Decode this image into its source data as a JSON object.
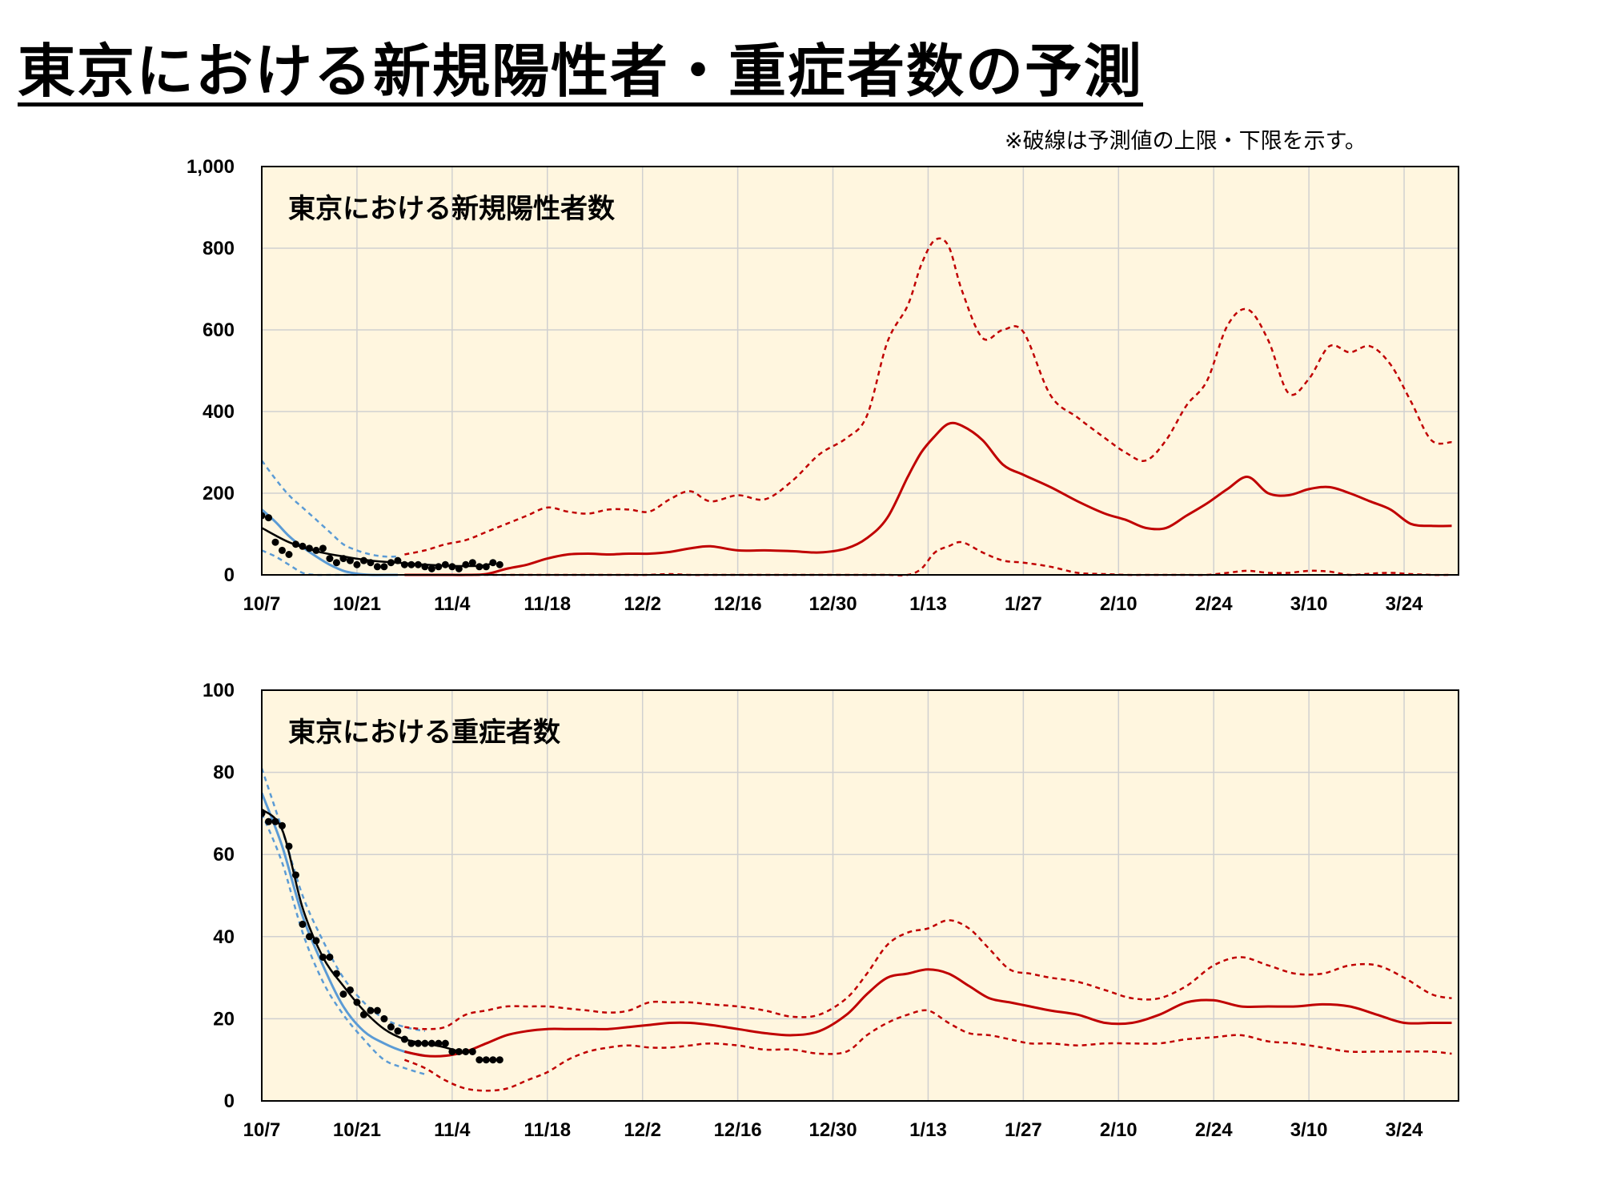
{
  "page": {
    "title": "東京における新規陽性者・重症者数の予測",
    "note": "※破線は予測値の上限・下限を示す。"
  },
  "colors": {
    "plot_bg": "#fff6df",
    "grid": "#d0d0d0",
    "observed": "#000000",
    "fit": "#5b9bd5",
    "forecast": "#c00000"
  },
  "chart_data": [
    {
      "type": "line",
      "title": "東京における新規陽性者数",
      "x_start": "10/7",
      "x_tick_labels": [
        "10/7",
        "10/21",
        "11/4",
        "11/18",
        "12/2",
        "12/16",
        "12/30",
        "1/13",
        "1/27",
        "2/10",
        "2/24",
        "3/10",
        "3/24"
      ],
      "x_tick_days": [
        0,
        14,
        28,
        42,
        56,
        70,
        84,
        98,
        112,
        126,
        140,
        154,
        168
      ],
      "xlim_days": [
        0,
        176
      ],
      "ylim": [
        0,
        1000
      ],
      "y_ticks": [
        0,
        200,
        400,
        600,
        800,
        1000
      ],
      "y_tick_labels": [
        "0",
        "200",
        "400",
        "600",
        "800",
        "1,000"
      ],
      "grid": true,
      "series": [
        {
          "role": "observed_points",
          "x": [
            0,
            1,
            2,
            3,
            4,
            5,
            6,
            7,
            8,
            9,
            10,
            11,
            12,
            13,
            14,
            15,
            16,
            17,
            18,
            19,
            20,
            21,
            22,
            23,
            24,
            25,
            26,
            27,
            28,
            29,
            30,
            31,
            32,
            33,
            34,
            35
          ],
          "values": [
            145,
            140,
            80,
            60,
            50,
            75,
            70,
            65,
            60,
            65,
            40,
            30,
            40,
            35,
            25,
            35,
            30,
            20,
            20,
            30,
            35,
            25,
            25,
            25,
            20,
            15,
            20,
            25,
            20,
            15,
            25,
            30,
            20,
            20,
            30,
            25
          ]
        },
        {
          "role": "observed_smooth",
          "x": [
            0,
            4,
            8,
            12,
            16,
            20,
            24,
            28,
            32,
            34
          ],
          "values": [
            115,
            80,
            58,
            45,
            35,
            30,
            25,
            22,
            22,
            28
          ]
        },
        {
          "role": "fit",
          "x": [
            0,
            2,
            4,
            6,
            8,
            10,
            12,
            14,
            16,
            18,
            20
          ],
          "values": [
            160,
            130,
            95,
            68,
            45,
            25,
            10,
            3,
            0,
            0,
            0
          ]
        },
        {
          "role": "fit_upper",
          "x": [
            0,
            2,
            4,
            6,
            8,
            10,
            12,
            14,
            16,
            18,
            20
          ],
          "values": [
            280,
            235,
            195,
            165,
            135,
            105,
            75,
            60,
            50,
            45,
            45
          ]
        },
        {
          "role": "fit_lower",
          "x": [
            0,
            2,
            4,
            6,
            8,
            10,
            12,
            14,
            16,
            18,
            20
          ],
          "values": [
            60,
            45,
            25,
            5,
            0,
            0,
            0,
            0,
            0,
            0,
            0
          ]
        },
        {
          "role": "forecast",
          "x": [
            21,
            24,
            27,
            30,
            33,
            36,
            39,
            42,
            45,
            48,
            51,
            54,
            57,
            60,
            63,
            66,
            70,
            74,
            78,
            82,
            86,
            89,
            92,
            95,
            97,
            99,
            101,
            103,
            106,
            109,
            112,
            116,
            120,
            124,
            127,
            130,
            133,
            136,
            139,
            142,
            145,
            148,
            151,
            154,
            157,
            160,
            163,
            166,
            169,
            172,
            175
          ],
          "values": [
            0,
            0,
            0,
            0,
            2,
            15,
            25,
            40,
            50,
            52,
            50,
            52,
            52,
            56,
            65,
            70,
            60,
            60,
            58,
            55,
            65,
            90,
            140,
            240,
            300,
            340,
            370,
            365,
            330,
            270,
            245,
            215,
            180,
            150,
            135,
            115,
            115,
            145,
            175,
            210,
            240,
            200,
            195,
            210,
            215,
            200,
            180,
            160,
            125,
            120,
            120
          ]
        },
        {
          "role": "forecast_upper",
          "x": [
            21,
            24,
            27,
            30,
            33,
            36,
            39,
            42,
            45,
            48,
            51,
            54,
            57,
            60,
            63,
            66,
            70,
            74,
            78,
            82,
            86,
            89,
            92,
            95,
            97,
            99,
            101,
            103,
            106,
            109,
            112,
            116,
            120,
            124,
            127,
            130,
            133,
            136,
            139,
            142,
            145,
            148,
            151,
            154,
            157,
            160,
            163,
            166,
            169,
            172,
            175
          ],
          "values": [
            50,
            60,
            75,
            85,
            105,
            125,
            145,
            165,
            155,
            150,
            160,
            160,
            155,
            185,
            205,
            180,
            195,
            185,
            230,
            295,
            335,
            390,
            570,
            660,
            760,
            820,
            805,
            695,
            580,
            600,
            595,
            440,
            385,
            335,
            300,
            280,
            330,
            415,
            475,
            610,
            650,
            575,
            445,
            480,
            560,
            545,
            560,
            515,
            425,
            330,
            325
          ]
        },
        {
          "role": "forecast_lower",
          "x": [
            21,
            24,
            27,
            30,
            33,
            36,
            39,
            42,
            45,
            48,
            51,
            54,
            57,
            60,
            63,
            66,
            70,
            74,
            78,
            82,
            86,
            89,
            92,
            95,
            97,
            99,
            101,
            103,
            106,
            109,
            112,
            116,
            120,
            124,
            127,
            130,
            133,
            136,
            139,
            142,
            145,
            148,
            151,
            154,
            157,
            160,
            163,
            166,
            169,
            172,
            175
          ],
          "values": [
            0,
            0,
            0,
            0,
            0,
            0,
            0,
            0,
            0,
            0,
            0,
            0,
            0,
            2,
            0,
            0,
            0,
            0,
            0,
            0,
            0,
            0,
            0,
            0,
            15,
            55,
            70,
            80,
            55,
            35,
            30,
            20,
            5,
            2,
            0,
            0,
            0,
            0,
            0,
            5,
            10,
            5,
            5,
            10,
            8,
            0,
            3,
            5,
            2,
            0,
            0
          ]
        }
      ]
    },
    {
      "type": "line",
      "title": "東京における重症者数",
      "x_start": "10/7",
      "x_tick_labels": [
        "10/7",
        "10/21",
        "11/4",
        "11/18",
        "12/2",
        "12/16",
        "12/30",
        "1/13",
        "1/27",
        "2/10",
        "2/24",
        "3/10",
        "3/24"
      ],
      "x_tick_days": [
        0,
        14,
        28,
        42,
        56,
        70,
        84,
        98,
        112,
        126,
        140,
        154,
        168
      ],
      "xlim_days": [
        0,
        176
      ],
      "ylim": [
        0,
        100
      ],
      "y_ticks": [
        0,
        20,
        40,
        60,
        80,
        100
      ],
      "y_tick_labels": [
        "0",
        "20",
        "40",
        "60",
        "80",
        "100"
      ],
      "grid": true,
      "series": [
        {
          "role": "observed_points",
          "x": [
            0,
            1,
            2,
            3,
            4,
            5,
            6,
            7,
            8,
            9,
            10,
            11,
            12,
            13,
            14,
            15,
            16,
            17,
            18,
            19,
            20,
            21,
            22,
            23,
            24,
            25,
            26,
            27,
            28,
            29,
            30,
            31,
            32,
            33,
            34,
            35
          ],
          "values": [
            70,
            68,
            68,
            67,
            62,
            55,
            43,
            40,
            39,
            35,
            35,
            31,
            26,
            27,
            24,
            21,
            22,
            22,
            20,
            18,
            17,
            15,
            14,
            14,
            14,
            14,
            14,
            14,
            12,
            12,
            12,
            12,
            10,
            10,
            10,
            10
          ]
        },
        {
          "role": "observed_smooth",
          "x": [
            0,
            3,
            6,
            9,
            12,
            15,
            18,
            21,
            24,
            27,
            30
          ],
          "values": [
            71,
            66,
            47,
            35,
            28,
            22,
            17.5,
            15,
            14,
            13,
            11.5
          ]
        },
        {
          "role": "fit",
          "x": [
            0,
            3,
            6,
            9,
            12,
            15,
            18,
            21,
            24
          ],
          "values": [
            75,
            62,
            45,
            33,
            23,
            17,
            14,
            12,
            11
          ]
        },
        {
          "role": "fit_upper",
          "x": [
            0,
            3,
            6,
            9,
            12,
            15,
            18,
            21,
            24
          ],
          "values": [
            81,
            66,
            50,
            39,
            30,
            24,
            20,
            18,
            17
          ]
        },
        {
          "role": "fit_lower",
          "x": [
            0,
            3,
            6,
            9,
            12,
            15,
            18,
            21,
            24
          ],
          "values": [
            70,
            58,
            41,
            29,
            21,
            15,
            10,
            8,
            6.5
          ]
        },
        {
          "role": "forecast",
          "x": [
            21,
            24,
            27,
            30,
            33,
            36,
            39,
            42,
            45,
            48,
            51,
            54,
            57,
            60,
            63,
            66,
            70,
            74,
            78,
            82,
            86,
            89,
            92,
            95,
            98,
            101,
            104,
            107,
            110,
            113,
            116,
            120,
            124,
            128,
            132,
            136,
            140,
            144,
            148,
            152,
            156,
            160,
            164,
            168,
            172,
            175
          ],
          "values": [
            12,
            11,
            11,
            12,
            14,
            16,
            17,
            17.5,
            17.5,
            17.5,
            17.5,
            18,
            18.5,
            19,
            19,
            18.5,
            17.5,
            16.5,
            16,
            17,
            21,
            26,
            30,
            31,
            32,
            31,
            28,
            25,
            24,
            23,
            22,
            21,
            19,
            19,
            21,
            24,
            24.5,
            23,
            23,
            23,
            23.5,
            23,
            21,
            19,
            19,
            19
          ]
        },
        {
          "role": "forecast_upper",
          "x": [
            21,
            24,
            27,
            30,
            33,
            36,
            39,
            42,
            45,
            48,
            51,
            54,
            57,
            60,
            63,
            66,
            70,
            74,
            78,
            82,
            86,
            89,
            92,
            95,
            98,
            101,
            104,
            107,
            110,
            113,
            116,
            120,
            124,
            128,
            132,
            136,
            140,
            144,
            148,
            152,
            156,
            160,
            164,
            168,
            172,
            175
          ],
          "values": [
            18,
            17.5,
            18,
            21,
            22,
            23,
            23,
            23,
            22.5,
            22,
            21.5,
            22,
            24,
            24,
            24,
            23.5,
            23,
            22,
            20.5,
            21,
            25,
            31,
            38,
            41,
            42,
            44,
            42,
            37,
            32,
            31,
            30,
            29,
            27,
            25,
            25,
            28,
            33,
            35,
            33,
            31,
            31,
            33,
            33,
            30,
            26,
            25
          ]
        },
        {
          "role": "forecast_lower",
          "x": [
            21,
            24,
            27,
            30,
            33,
            36,
            39,
            42,
            45,
            48,
            51,
            54,
            57,
            60,
            63,
            66,
            70,
            74,
            78,
            82,
            86,
            89,
            92,
            95,
            98,
            101,
            104,
            107,
            110,
            113,
            116,
            120,
            124,
            128,
            132,
            136,
            140,
            144,
            148,
            152,
            156,
            160,
            164,
            168,
            172,
            175
          ],
          "values": [
            10,
            8,
            5,
            3,
            2.5,
            3,
            5,
            7,
            10,
            12,
            13,
            13.5,
            13,
            13,
            13.5,
            14,
            13.5,
            12.5,
            12.5,
            11.5,
            12,
            16,
            19,
            21,
            22,
            19,
            16.5,
            16,
            15,
            14,
            14,
            13.5,
            14,
            14,
            14,
            15,
            15.5,
            16,
            14.5,
            14,
            13,
            12,
            12,
            12,
            12,
            11.5
          ]
        }
      ]
    }
  ]
}
